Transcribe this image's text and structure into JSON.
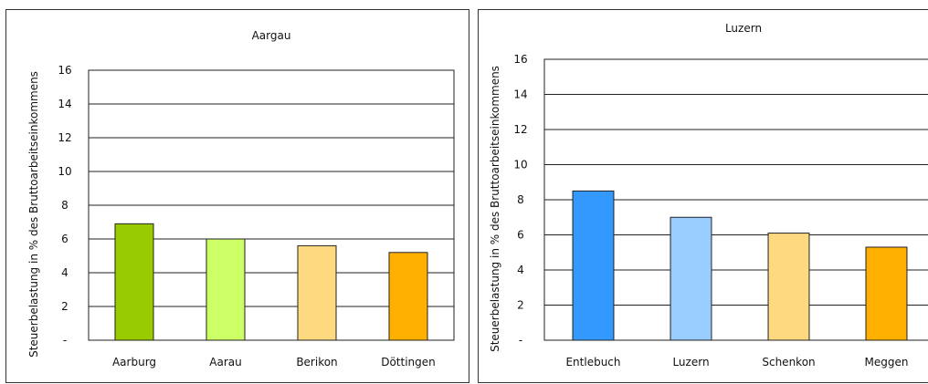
{
  "chart_data": [
    {
      "type": "bar",
      "title": "Aargau",
      "ylabel": "Steuerbelastung in % des Bruttoarbeitseinkommens",
      "xlabel": "",
      "ylim": [
        0,
        16
      ],
      "yticks": [
        "-",
        "2",
        "4",
        "6",
        "8",
        "10",
        "12",
        "14",
        "16"
      ],
      "grid": true,
      "categories": [
        "Aarburg",
        "Aarau",
        "Berikon",
        "Döttingen"
      ],
      "values": [
        6.9,
        6.0,
        5.6,
        5.2
      ],
      "colors": [
        "#99cc00",
        "#ccff66",
        "#ffd97f",
        "#ffb000"
      ]
    },
    {
      "type": "bar",
      "title": "Luzern",
      "ylabel": "Steuerbelastung in % des Bruttoarbeitseinkommens",
      "xlabel": "",
      "ylim": [
        0,
        16
      ],
      "yticks": [
        "-",
        "2",
        "4",
        "6",
        "8",
        "10",
        "12",
        "14",
        "16"
      ],
      "grid": true,
      "categories": [
        "Entlebuch",
        "Luzern",
        "Schenkon",
        "Meggen"
      ],
      "values": [
        8.5,
        7.0,
        6.1,
        5.3
      ],
      "colors": [
        "#3399ff",
        "#99ccff",
        "#ffd97f",
        "#ffb000"
      ]
    }
  ]
}
